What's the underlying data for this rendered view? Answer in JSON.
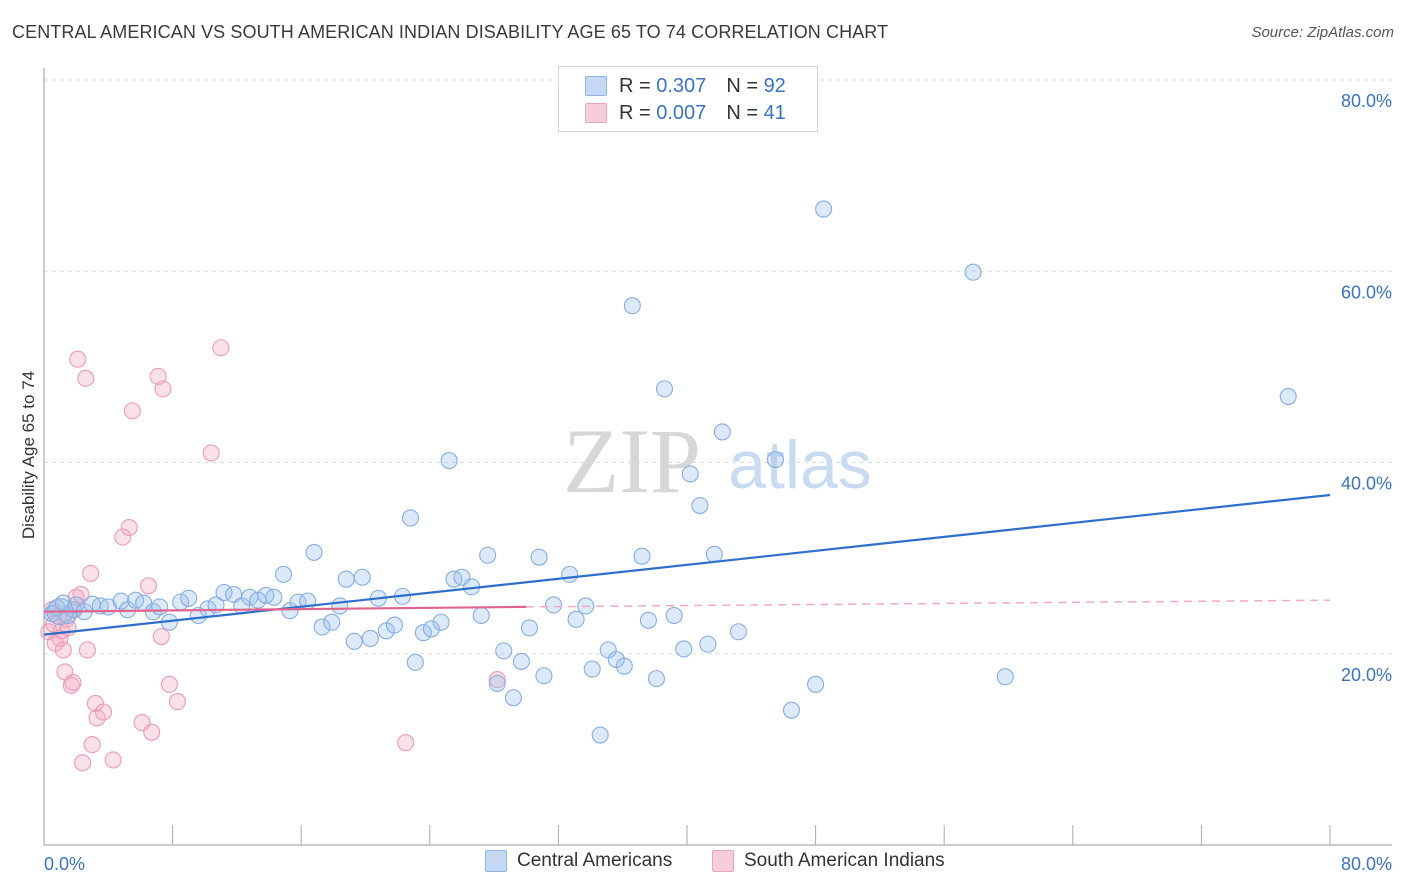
{
  "header": {
    "title": "CENTRAL AMERICAN VS SOUTH AMERICAN INDIAN DISABILITY AGE 65 TO 74 CORRELATION CHART",
    "source": "Source: ZipAtlas.com"
  },
  "legend_top": {
    "rows": [
      {
        "r_label": "R =",
        "r_value": "0.307",
        "n_label": "N =",
        "n_value": "92"
      },
      {
        "r_label": "R =",
        "r_value": "0.007",
        "n_label": "N =",
        "n_value": "41"
      }
    ]
  },
  "watermark": {
    "zip": "ZIP",
    "atlas": "atlas"
  },
  "chart_data": {
    "type": "scatter",
    "xlabel": "",
    "ylabel": "Disability Age 65 to 74",
    "xlim": [
      0,
      80
    ],
    "ylim": [
      0,
      80
    ],
    "x_tick_labels": [
      "0.0%",
      "80.0%"
    ],
    "y_tick_labels": [
      "20.0%",
      "40.0%",
      "60.0%",
      "80.0%"
    ],
    "y_ticks": [
      20,
      40,
      60,
      80
    ],
    "grid": "horizontal dashed",
    "legend_placement": "bottom",
    "colors": {
      "blue": "#9bbfec",
      "blue_line": "#2d6fcb",
      "pink": "#f2a9c0",
      "pink_line": "#e0648c",
      "tick_text": "#3a72c4"
    },
    "series": [
      {
        "name": "Central Americans",
        "color": "#9bbfec",
        "trend": {
          "x": [
            0,
            80
          ],
          "y": [
            22.0,
            36.6
          ]
        },
        "points": [
          [
            0.5,
            24.2
          ],
          [
            0.8,
            24.8
          ],
          [
            1.2,
            25.3
          ],
          [
            1.5,
            24.0
          ],
          [
            1.8,
            24.6
          ],
          [
            2.0,
            25.1
          ],
          [
            2.5,
            24.4
          ],
          [
            3.0,
            25.2
          ],
          [
            3.5,
            25.0
          ],
          [
            4.0,
            24.9
          ],
          [
            4.8,
            25.5
          ],
          [
            5.2,
            24.6
          ],
          [
            5.7,
            25.6
          ],
          [
            6.2,
            25.3
          ],
          [
            6.8,
            24.4
          ],
          [
            7.2,
            24.9
          ],
          [
            7.8,
            23.3
          ],
          [
            8.5,
            25.4
          ],
          [
            9.0,
            25.8
          ],
          [
            9.6,
            24.0
          ],
          [
            10.2,
            24.7
          ],
          [
            10.7,
            25.1
          ],
          [
            11.2,
            26.4
          ],
          [
            11.8,
            26.2
          ],
          [
            12.3,
            25.0
          ],
          [
            12.8,
            25.9
          ],
          [
            13.3,
            25.6
          ],
          [
            13.8,
            26.1
          ],
          [
            14.3,
            25.9
          ],
          [
            14.9,
            28.3
          ],
          [
            15.3,
            24.5
          ],
          [
            15.8,
            25.4
          ],
          [
            16.4,
            25.5
          ],
          [
            16.8,
            30.6
          ],
          [
            17.3,
            22.8
          ],
          [
            17.9,
            23.3
          ],
          [
            18.4,
            25.0
          ],
          [
            18.8,
            27.8
          ],
          [
            19.3,
            21.3
          ],
          [
            19.8,
            28.0
          ],
          [
            20.3,
            21.6
          ],
          [
            20.8,
            25.8
          ],
          [
            21.3,
            22.4
          ],
          [
            21.8,
            23.0
          ],
          [
            22.3,
            26.0
          ],
          [
            22.8,
            34.2
          ],
          [
            23.1,
            19.1
          ],
          [
            23.6,
            22.2
          ],
          [
            24.1,
            22.6
          ],
          [
            24.7,
            23.3
          ],
          [
            25.2,
            40.2
          ],
          [
            25.5,
            27.8
          ],
          [
            26.0,
            28.0
          ],
          [
            26.6,
            27.0
          ],
          [
            27.2,
            24.0
          ],
          [
            27.6,
            30.3
          ],
          [
            28.2,
            16.9
          ],
          [
            28.6,
            20.3
          ],
          [
            29.2,
            15.4
          ],
          [
            29.7,
            19.2
          ],
          [
            30.2,
            22.7
          ],
          [
            30.8,
            30.1
          ],
          [
            31.1,
            17.7
          ],
          [
            31.7,
            25.1
          ],
          [
            32.7,
            28.3
          ],
          [
            33.1,
            23.6
          ],
          [
            33.7,
            25.0
          ],
          [
            34.1,
            18.4
          ],
          [
            34.6,
            11.5
          ],
          [
            35.1,
            20.4
          ],
          [
            35.6,
            19.4
          ],
          [
            36.1,
            18.7
          ],
          [
            36.6,
            56.4
          ],
          [
            37.2,
            30.2
          ],
          [
            37.6,
            23.5
          ],
          [
            38.1,
            17.4
          ],
          [
            38.6,
            47.7
          ],
          [
            39.2,
            24.0
          ],
          [
            39.8,
            20.5
          ],
          [
            40.2,
            38.8
          ],
          [
            40.8,
            35.5
          ],
          [
            41.3,
            21.0
          ],
          [
            41.7,
            30.4
          ],
          [
            42.2,
            43.2
          ],
          [
            43.2,
            22.3
          ],
          [
            45.5,
            40.3
          ],
          [
            46.5,
            14.1
          ],
          [
            48.0,
            16.8
          ],
          [
            48.5,
            66.5
          ],
          [
            57.8,
            59.9
          ],
          [
            59.8,
            17.6
          ],
          [
            77.4,
            46.9
          ]
        ]
      },
      {
        "name": "South American Indians",
        "color": "#f2a9c0",
        "trend": {
          "x": [
            0,
            30
          ],
          "y": [
            24.4,
            24.9
          ]
        },
        "trend_dashed": {
          "x": [
            30,
            80
          ],
          "y": [
            24.9,
            25.6
          ]
        },
        "points": [
          [
            0.3,
            22.3
          ],
          [
            0.5,
            24.6
          ],
          [
            0.6,
            23.1
          ],
          [
            0.7,
            21.1
          ],
          [
            0.9,
            23.9
          ],
          [
            1.0,
            21.6
          ],
          [
            1.1,
            22.4
          ],
          [
            1.2,
            20.4
          ],
          [
            1.3,
            18.1
          ],
          [
            1.4,
            23.6
          ],
          [
            1.5,
            22.7
          ],
          [
            1.7,
            16.7
          ],
          [
            1.8,
            17.0
          ],
          [
            1.9,
            24.6
          ],
          [
            2.0,
            25.9
          ],
          [
            2.1,
            50.8
          ],
          [
            2.3,
            26.2
          ],
          [
            2.4,
            8.6
          ],
          [
            2.6,
            48.8
          ],
          [
            2.7,
            20.4
          ],
          [
            2.9,
            28.4
          ],
          [
            3.0,
            10.5
          ],
          [
            3.2,
            14.8
          ],
          [
            3.3,
            13.3
          ],
          [
            3.7,
            13.9
          ],
          [
            4.3,
            8.9
          ],
          [
            4.9,
            32.2
          ],
          [
            5.3,
            33.2
          ],
          [
            5.5,
            45.4
          ],
          [
            6.1,
            12.8
          ],
          [
            6.5,
            27.1
          ],
          [
            6.7,
            11.8
          ],
          [
            7.1,
            49.0
          ],
          [
            7.3,
            21.8
          ],
          [
            7.4,
            47.7
          ],
          [
            7.8,
            16.8
          ],
          [
            8.3,
            15.0
          ],
          [
            10.4,
            41.0
          ],
          [
            11.0,
            52.0
          ],
          [
            22.5,
            10.7
          ],
          [
            28.2,
            17.3
          ]
        ]
      }
    ]
  }
}
